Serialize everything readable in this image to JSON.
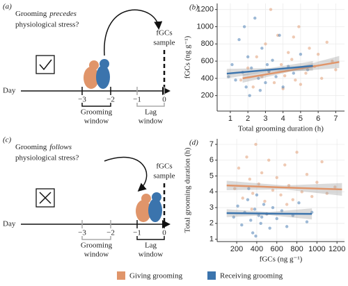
{
  "diagrams": [
    {
      "label": "(a)",
      "question": [
        "Grooming",
        "precedes",
        "physiological stress?"
      ],
      "sample": [
        "fGCs",
        "sample"
      ],
      "axis": "Day",
      "ticks": [
        "−3",
        "−2",
        "−1",
        "0"
      ],
      "windows": [
        [
          "Grooming",
          "window"
        ],
        [
          "Lag",
          "window"
        ]
      ],
      "active_window": 0
    },
    {
      "label": "(c)",
      "question": [
        "Grooming",
        "follows",
        "physiological stress?"
      ],
      "sample": [
        "fGCs",
        "sample"
      ],
      "axis": "Day",
      "ticks": [
        "−3",
        "−2",
        "−1",
        "0"
      ],
      "windows": [
        [
          "Grooming",
          "window"
        ],
        [
          "Lag",
          "window"
        ]
      ],
      "active_window": 1
    }
  ],
  "chart_data": [
    {
      "type": "scatter",
      "panel": "(b)",
      "x_label": "Total grooming duration (h)",
      "y_label": "fGCs (ng g⁻¹)",
      "xlim": [
        0.25,
        7.5
      ],
      "ylim": [
        20,
        1270
      ],
      "xticks": [
        1,
        2,
        3,
        4,
        5,
        6,
        7
      ],
      "yticks": [
        200,
        400,
        600,
        800,
        1000,
        1200
      ],
      "grid": true,
      "series": [
        {
          "name": "Giving grooming",
          "color": "#e0956a",
          "x": [
            1.6,
            2.0,
            2.3,
            2.5,
            2.8,
            3.0,
            3.2,
            3.5,
            3.7,
            3.9,
            4.1,
            4.3,
            4.5,
            4.7,
            4.9,
            5.1,
            5.3,
            5.5,
            5.8,
            6.0,
            6.2,
            6.5,
            6.8,
            7.0,
            3.3,
            4.0,
            4.6,
            5.0
          ],
          "values": [
            380,
            520,
            300,
            650,
            420,
            800,
            480,
            350,
            900,
            560,
            430,
            700,
            620,
            380,
            1000,
            520,
            460,
            750,
            540,
            680,
            400,
            820,
            600,
            500,
            1200,
            280,
            880,
            330
          ],
          "fit": {
            "x": [
              1.7,
              4.45,
              7.2
            ],
            "y": [
              400,
              495,
              590
            ],
            "lower": [
              350,
              480,
              520
            ],
            "upper": [
              450,
              510,
              660
            ]
          }
        },
        {
          "name": "Receiving grooming",
          "color": "#3b74ad",
          "x": [
            0.9,
            1.1,
            1.3,
            1.5,
            1.7,
            1.9,
            2.0,
            2.2,
            2.4,
            2.6,
            2.8,
            3.0,
            3.2,
            3.4,
            3.6,
            3.8,
            4.0,
            4.3,
            4.6,
            5.0,
            5.4,
            2.1,
            1.8,
            2.7,
            3.1
          ],
          "values": [
            420,
            560,
            380,
            850,
            470,
            300,
            650,
            520,
            1100,
            400,
            750,
            350,
            480,
            610,
            420,
            900,
            300,
            540,
            460,
            680,
            500,
            200,
            1000,
            260,
            560
          ],
          "fit": {
            "x": [
              0.8,
              3.25,
              5.7
            ],
            "y": [
              455,
              500,
              545
            ],
            "lower": [
              400,
              480,
              490
            ],
            "upper": [
              510,
              520,
              600
            ]
          }
        }
      ]
    },
    {
      "type": "scatter",
      "panel": "(d)",
      "x_label": "fGCs (ng g⁻¹)",
      "y_label": "Total grooming duration (h)",
      "xlim": [
        5,
        1275
      ],
      "ylim": [
        0.85,
        7.35
      ],
      "xticks": [
        200,
        400,
        600,
        800,
        1000,
        1200
      ],
      "yticks": [
        1,
        2,
        3,
        4,
        5,
        6,
        7
      ],
      "grid": true,
      "series": [
        {
          "color": "#e0956a",
          "x": [
            180,
            220,
            260,
            300,
            330,
            360,
            390,
            420,
            450,
            480,
            520,
            560,
            600,
            640,
            680,
            720,
            760,
            800,
            850,
            900,
            950,
            1000,
            1050,
            1100,
            1180,
            350,
            500,
            700
          ],
          "values": [
            4.2,
            5.5,
            3.6,
            6.2,
            4.8,
            3.9,
            7.0,
            4.5,
            5.2,
            3.4,
            6.0,
            4.1,
            4.9,
            3.8,
            5.7,
            4.4,
            3.5,
            6.5,
            4.0,
            5.1,
            3.7,
            4.6,
            5.9,
            3.9,
            4.3,
            2.9,
            2.6,
            3.2
          ],
          "fit": {
            "x": [
              100,
              675,
              1250
            ],
            "y": [
              4.4,
              4.27,
              4.15
            ],
            "lower": [
              4.1,
              4.15,
              3.75
            ],
            "upper": [
              4.7,
              4.4,
              4.55
            ]
          }
        },
        {
          "color": "#3b74ad",
          "x": [
            170,
            210,
            250,
            280,
            310,
            340,
            360,
            380,
            400,
            420,
            440,
            470,
            500,
            530,
            560,
            600,
            650,
            700,
            760,
            820,
            900,
            950,
            320,
            390,
            450
          ],
          "values": [
            2.4,
            3.1,
            1.9,
            2.7,
            3.5,
            2.2,
            1.4,
            2.9,
            3.8,
            2.5,
            2.0,
            3.2,
            2.6,
            1.7,
            3.0,
            2.3,
            2.8,
            1.8,
            2.5,
            3.3,
            2.1,
            2.7,
            4.2,
            1.2,
            2.4
          ],
          "fit": {
            "x": [
              100,
              525,
              950
            ],
            "y": [
              2.65,
              2.62,
              2.6
            ],
            "lower": [
              2.4,
              2.52,
              2.25
            ],
            "upper": [
              2.9,
              2.72,
              2.95
            ]
          }
        }
      ]
    }
  ]
}
